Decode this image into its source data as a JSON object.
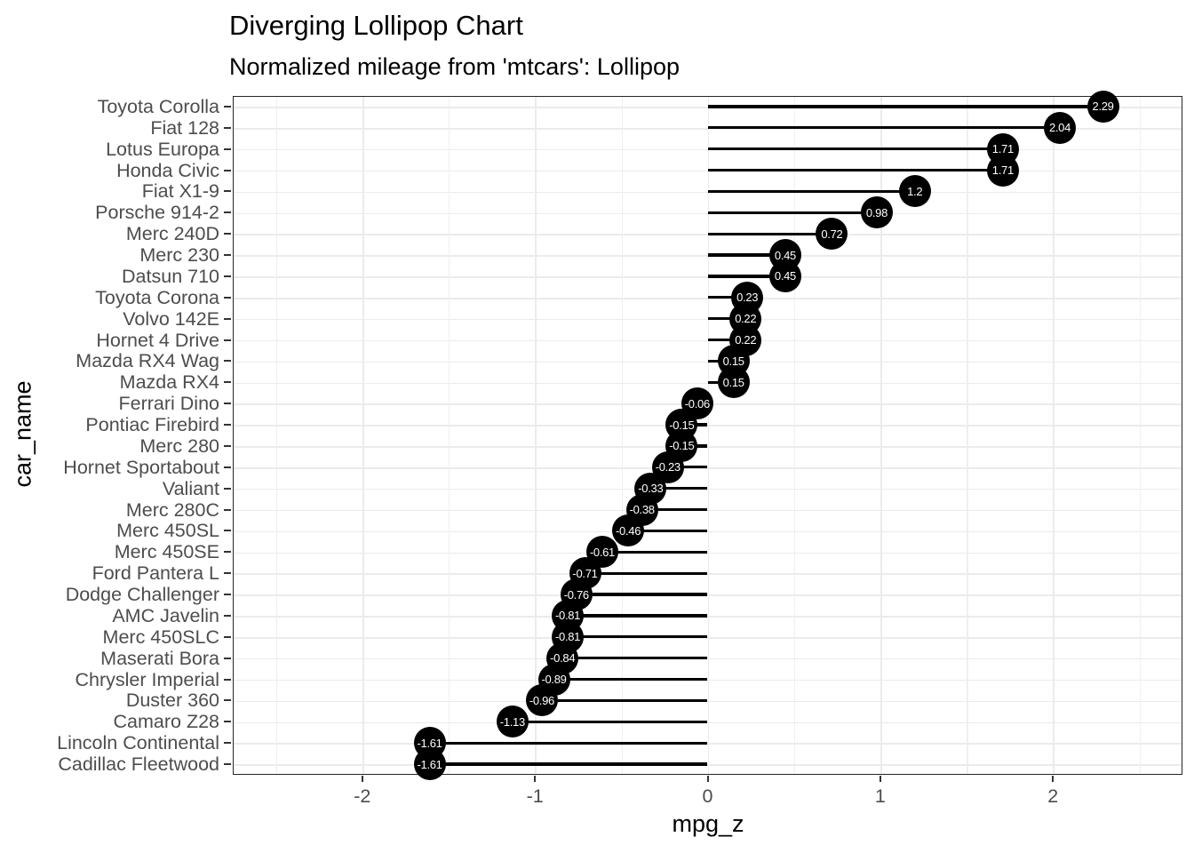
{
  "page": {
    "background": "#ffffff"
  },
  "chart": {
    "title": "Diverging Lollipop Chart",
    "subtitle": "Normalized mileage from 'mtcars': Lollipop",
    "xlabel": "mpg_z",
    "ylabel": "car_name"
  },
  "chart_data": {
    "type": "lollipop",
    "orientation": "horizontal",
    "title": "Diverging Lollipop Chart",
    "subtitle": "Normalized mileage from 'mtcars': Lollipop",
    "xlabel": "mpg_z",
    "ylabel": "car_name",
    "categories": [
      "Toyota Corolla",
      "Fiat 128",
      "Lotus Europa",
      "Honda Civic",
      "Fiat X1-9",
      "Porsche 914-2",
      "Merc 240D",
      "Merc 230",
      "Datsun 710",
      "Toyota Corona",
      "Volvo 142E",
      "Hornet 4 Drive",
      "Mazda RX4 Wag",
      "Mazda RX4",
      "Ferrari Dino",
      "Pontiac Firebird",
      "Merc 280",
      "Hornet Sportabout",
      "Valiant",
      "Merc 280C",
      "Merc 450SL",
      "Merc 450SE",
      "Ford Pantera L",
      "Dodge Challenger",
      "AMC Javelin",
      "Merc 450SLC",
      "Maserati Bora",
      "Chrysler Imperial",
      "Duster 360",
      "Camaro Z28",
      "Lincoln Continental",
      "Cadillac Fleetwood"
    ],
    "values": [
      2.29,
      2.04,
      1.71,
      1.71,
      1.2,
      0.98,
      0.72,
      0.45,
      0.45,
      0.23,
      0.22,
      0.22,
      0.15,
      0.15,
      -0.06,
      -0.15,
      -0.15,
      -0.23,
      -0.33,
      -0.38,
      -0.46,
      -0.61,
      -0.71,
      -0.76,
      -0.81,
      -0.81,
      -0.84,
      -0.89,
      -0.96,
      -1.13,
      -1.61,
      -1.61
    ],
    "value_labels": [
      "2.29",
      "2.04",
      "1.71",
      "1.71",
      "1.2",
      "0.98",
      "0.72",
      "0.45",
      "0.45",
      "0.23",
      "0.22",
      "0.22",
      "0.15",
      "0.15",
      "-0.06",
      "-0.15",
      "-0.15",
      "-0.23",
      "-0.33",
      "-0.38",
      "-0.46",
      "-0.61",
      "-0.71",
      "-0.76",
      "-0.81",
      "-0.81",
      "-0.84",
      "-0.89",
      "-0.96",
      "-1.13",
      "-1.61",
      "-1.61"
    ],
    "xlim": [
      -2.75,
      2.75
    ],
    "x_major_ticks": [
      -2,
      -1,
      0,
      1,
      2
    ],
    "x_tick_labels": [
      "-2",
      "-1",
      "0",
      "1",
      "2"
    ],
    "x_minor_ticks": [
      -2.5,
      -1.5,
      -0.5,
      0.5,
      1.5,
      2.5
    ],
    "grid": true,
    "legend": "none",
    "colors": {
      "dot": "#000000",
      "stem": "#000000",
      "dot_label": "#ffffff",
      "gridline": "#ebebeb",
      "panel_border": "#262626",
      "tick": "#333333",
      "axis_text": "#4d4d4d",
      "title_text": "#000000",
      "background": "#ffffff"
    }
  }
}
